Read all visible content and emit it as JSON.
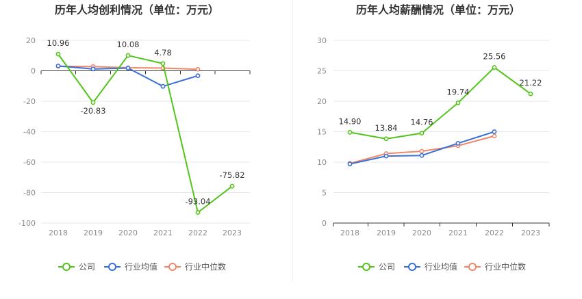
{
  "colors": {
    "company": "#52c41a",
    "industry_avg": "#3a6fd8",
    "industry_median": "#ee8866",
    "grid": "#e3e7ee",
    "axis": "#333333"
  },
  "chart_data": [
    {
      "type": "line",
      "title": "历年人均创利情况（单位：万元）",
      "categories": [
        "2018",
        "2019",
        "2020",
        "2021",
        "2022",
        "2023"
      ],
      "ylim": [
        -100,
        20
      ],
      "yticks": [
        "20",
        "0",
        "-20",
        "-40",
        "-60",
        "-80",
        "-100"
      ],
      "series": [
        {
          "name": "公司",
          "values": [
            10.96,
            -20.83,
            10.08,
            4.78,
            -93.04,
            -75.82
          ],
          "labels": [
            "10.96",
            "-20.83",
            "10.08",
            "4.78",
            "-93.04",
            "-75.82"
          ]
        },
        {
          "name": "行业均值",
          "values": [
            3.2,
            1.2,
            1.8,
            -10.2,
            -3.2,
            null
          ]
        },
        {
          "name": "行业中位数",
          "values": [
            3.0,
            2.8,
            2.0,
            1.8,
            1.0,
            null
          ]
        }
      ],
      "legend": "bottom"
    },
    {
      "type": "line",
      "title": "历年人均薪酬情况（单位：万元）",
      "categories": [
        "2018",
        "2019",
        "2020",
        "2021",
        "2022",
        "2023"
      ],
      "ylim": [
        0,
        30
      ],
      "yticks": [
        "30",
        "25",
        "20",
        "15",
        "10",
        "5",
        "0"
      ],
      "series": [
        {
          "name": "公司",
          "values": [
            14.9,
            13.84,
            14.76,
            19.74,
            25.56,
            21.22
          ],
          "labels": [
            "14.90",
            "13.84",
            "14.76",
            "19.74",
            "25.56",
            "21.22"
          ]
        },
        {
          "name": "行业均值",
          "values": [
            9.7,
            11.0,
            11.1,
            13.1,
            15.0,
            null
          ]
        },
        {
          "name": "行业中位数",
          "values": [
            9.8,
            11.4,
            11.8,
            12.7,
            14.3,
            null
          ]
        }
      ],
      "legend": "bottom"
    }
  ]
}
